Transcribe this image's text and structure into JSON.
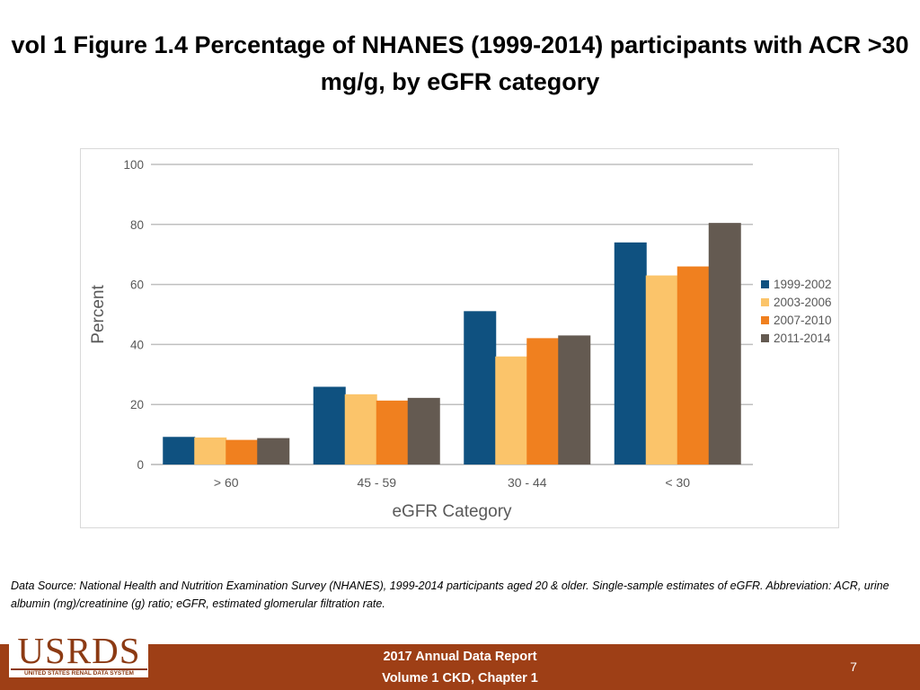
{
  "title": "vol 1 Figure 1.4 Percentage of NHANES (1999-2014) participants with ACR >30 mg/g, by eGFR category",
  "footnote": "Data Source: National Health and Nutrition Examination Survey (NHANES), 1999-2014 participants aged 20 & older. Single-sample estimates of eGFR. Abbreviation: ACR, urine albumin (mg)/creatinine (g) ratio; eGFR, estimated glomerular filtration rate.",
  "footer": {
    "logo_text": "USRDS",
    "logo_subtext": "UNITED STATES RENAL DATA SYSTEM",
    "report_line1": "2017 Annual Data Report",
    "report_line2": "Volume 1 CKD, Chapter 1",
    "page_number": "7"
  },
  "colors": {
    "footer_bar": "#9e3f16",
    "logo": "#8c3a13"
  },
  "chart_data": {
    "type": "bar",
    "xlabel": "eGFR Category",
    "ylabel": "Percent",
    "ylim": [
      0,
      100
    ],
    "yticks": [
      0,
      20,
      40,
      60,
      80,
      100
    ],
    "grid": true,
    "legend_position": "right",
    "categories": [
      "> 60",
      "45 - 59",
      "30 - 44",
      "< 30"
    ],
    "series": [
      {
        "name": "1999-2002",
        "color": "#0f5180",
        "values": [
          9.2,
          25.9,
          51.1,
          74.0
        ]
      },
      {
        "name": "2003-2006",
        "color": "#fbc46a",
        "values": [
          9.0,
          23.4,
          36.0,
          63.0
        ]
      },
      {
        "name": "2007-2010",
        "color": "#f0801f",
        "values": [
          8.2,
          21.3,
          42.1,
          66.0
        ]
      },
      {
        "name": "2011-2014",
        "color": "#645a51",
        "values": [
          8.8,
          22.2,
          43.0,
          80.5
        ]
      }
    ]
  }
}
